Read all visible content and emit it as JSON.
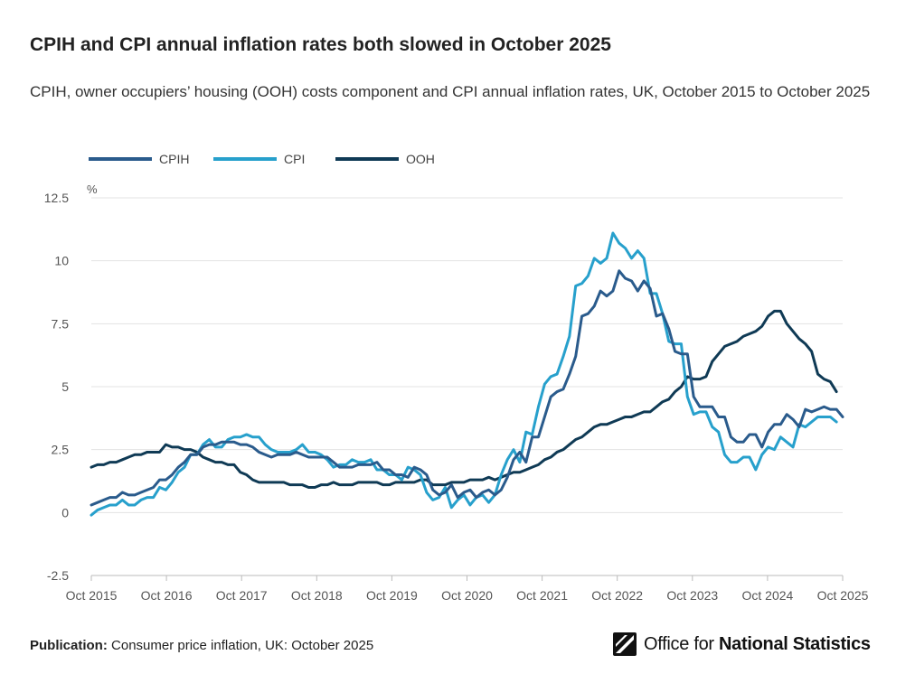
{
  "header": {
    "title": "CPIH and CPI annual inflation rates both slowed in October 2025",
    "subtitle": "CPIH, owner occupiers’ housing (OOH) costs component and CPI annual inflation rates, UK, October 2015 to October 2025"
  },
  "footer": {
    "publication_label": "Publication:",
    "publication_value": "Consumer price inflation, UK: October 2025"
  },
  "logo": {
    "text_regular": "Office for ",
    "text_bold": "National Statistics",
    "icon": "ons-logo-icon"
  },
  "chart_data": {
    "type": "line",
    "ylabel": "%",
    "ylim": [
      -2.5,
      12.5
    ],
    "yticks": [
      -2.5,
      0,
      2.5,
      5,
      7.5,
      10,
      12.5
    ],
    "ytick_labels": [
      "-2.5",
      "0",
      "2.5",
      "5",
      "7.5",
      "10",
      "12.5"
    ],
    "x_start": "Oct 2015",
    "x_end": "Oct 2025",
    "xtick_labels": [
      "Oct 2015",
      "Oct 2016",
      "Oct 2017",
      "Oct 2018",
      "Oct 2019",
      "Oct 2020",
      "Oct 2021",
      "Oct 2022",
      "Oct 2023",
      "Oct 2024",
      "Oct 2025"
    ],
    "grid": true,
    "legend_position": "top-left",
    "colors": {
      "CPIH": "#2a5b8c",
      "CPI": "#27a0cc",
      "OOH": "#0f3a55"
    },
    "series": [
      {
        "name": "CPIH",
        "values": [
          0.3,
          0.4,
          0.5,
          0.6,
          0.6,
          0.8,
          0.7,
          0.7,
          0.8,
          0.9,
          1.0,
          1.3,
          1.3,
          1.5,
          1.8,
          2.0,
          2.3,
          2.3,
          2.6,
          2.7,
          2.7,
          2.8,
          2.8,
          2.8,
          2.7,
          2.7,
          2.6,
          2.4,
          2.3,
          2.2,
          2.3,
          2.3,
          2.3,
          2.4,
          2.3,
          2.2,
          2.2,
          2.2,
          2.2,
          2.0,
          1.8,
          1.8,
          1.8,
          1.9,
          1.9,
          1.9,
          2.0,
          1.7,
          1.7,
          1.5,
          1.5,
          1.4,
          1.8,
          1.7,
          1.5,
          0.9,
          0.7,
          0.8,
          1.1,
          0.6,
          0.8,
          0.9,
          0.6,
          0.8,
          0.9,
          0.7,
          0.9,
          1.4,
          2.1,
          2.4,
          2.0,
          3.0,
          3.0,
          3.8,
          4.6,
          4.8,
          4.9,
          5.5,
          6.2,
          7.8,
          7.9,
          8.2,
          8.8,
          8.6,
          8.8,
          9.6,
          9.3,
          9.2,
          8.8,
          9.2,
          8.9,
          7.8,
          7.9,
          7.3,
          6.4,
          6.3,
          6.3,
          4.6,
          4.2,
          4.2,
          4.2,
          3.8,
          3.8,
          3.0,
          2.8,
          2.8,
          3.1,
          3.1,
          2.6,
          3.2,
          3.5,
          3.5,
          3.9,
          3.7,
          3.4,
          4.1,
          4.0,
          4.1,
          4.2,
          4.1,
          4.1,
          3.8
        ]
      },
      {
        "name": "CPI",
        "values": [
          -0.1,
          0.1,
          0.2,
          0.3,
          0.3,
          0.5,
          0.3,
          0.3,
          0.5,
          0.6,
          0.6,
          1.0,
          0.9,
          1.2,
          1.6,
          1.8,
          2.3,
          2.3,
          2.7,
          2.9,
          2.6,
          2.6,
          2.9,
          3.0,
          3.0,
          3.1,
          3.0,
          3.0,
          2.7,
          2.5,
          2.4,
          2.4,
          2.4,
          2.5,
          2.7,
          2.4,
          2.4,
          2.3,
          2.1,
          1.8,
          1.9,
          1.9,
          2.1,
          2.0,
          2.0,
          2.1,
          1.7,
          1.7,
          1.5,
          1.5,
          1.3,
          1.8,
          1.7,
          1.5,
          0.8,
          0.5,
          0.6,
          1.0,
          0.2,
          0.5,
          0.7,
          0.3,
          0.6,
          0.7,
          0.4,
          0.7,
          1.5,
          2.1,
          2.5,
          2.0,
          3.2,
          3.1,
          4.2,
          5.1,
          5.4,
          5.5,
          6.2,
          7.0,
          9.0,
          9.1,
          9.4,
          10.1,
          9.9,
          10.1,
          11.1,
          10.7,
          10.5,
          10.1,
          10.4,
          10.1,
          8.7,
          8.7,
          7.9,
          6.8,
          6.7,
          6.7,
          4.6,
          3.9,
          4.0,
          4.0,
          3.4,
          3.2,
          2.3,
          2.0,
          2.0,
          2.2,
          2.2,
          1.7,
          2.3,
          2.6,
          2.5,
          3.0,
          2.8,
          2.6,
          3.5,
          3.4,
          3.6,
          3.8,
          3.8,
          3.8,
          3.6
        ]
      },
      {
        "name": "OOH",
        "values": [
          1.8,
          1.9,
          1.9,
          2.0,
          2.0,
          2.1,
          2.2,
          2.3,
          2.3,
          2.4,
          2.4,
          2.4,
          2.7,
          2.6,
          2.6,
          2.5,
          2.5,
          2.4,
          2.2,
          2.1,
          2.0,
          2.0,
          1.9,
          1.9,
          1.6,
          1.5,
          1.3,
          1.2,
          1.2,
          1.2,
          1.2,
          1.2,
          1.1,
          1.1,
          1.1,
          1.0,
          1.0,
          1.1,
          1.1,
          1.2,
          1.1,
          1.1,
          1.1,
          1.2,
          1.2,
          1.2,
          1.2,
          1.1,
          1.1,
          1.2,
          1.2,
          1.2,
          1.2,
          1.3,
          1.3,
          1.1,
          1.1,
          1.1,
          1.2,
          1.2,
          1.2,
          1.3,
          1.3,
          1.3,
          1.4,
          1.3,
          1.4,
          1.5,
          1.6,
          1.6,
          1.7,
          1.8,
          1.9,
          2.1,
          2.2,
          2.4,
          2.5,
          2.7,
          2.9,
          3.0,
          3.2,
          3.4,
          3.5,
          3.5,
          3.6,
          3.7,
          3.8,
          3.8,
          3.9,
          4.0,
          4.0,
          4.2,
          4.4,
          4.5,
          4.8,
          5.0,
          5.4,
          5.3,
          5.3,
          5.4,
          6.0,
          6.3,
          6.6,
          6.7,
          6.8,
          7.0,
          7.1,
          7.2,
          7.4,
          7.8,
          8.0,
          8.0,
          7.5,
          7.2,
          6.9,
          6.7,
          6.4,
          5.5,
          5.3,
          5.2,
          4.8
        ]
      }
    ]
  }
}
